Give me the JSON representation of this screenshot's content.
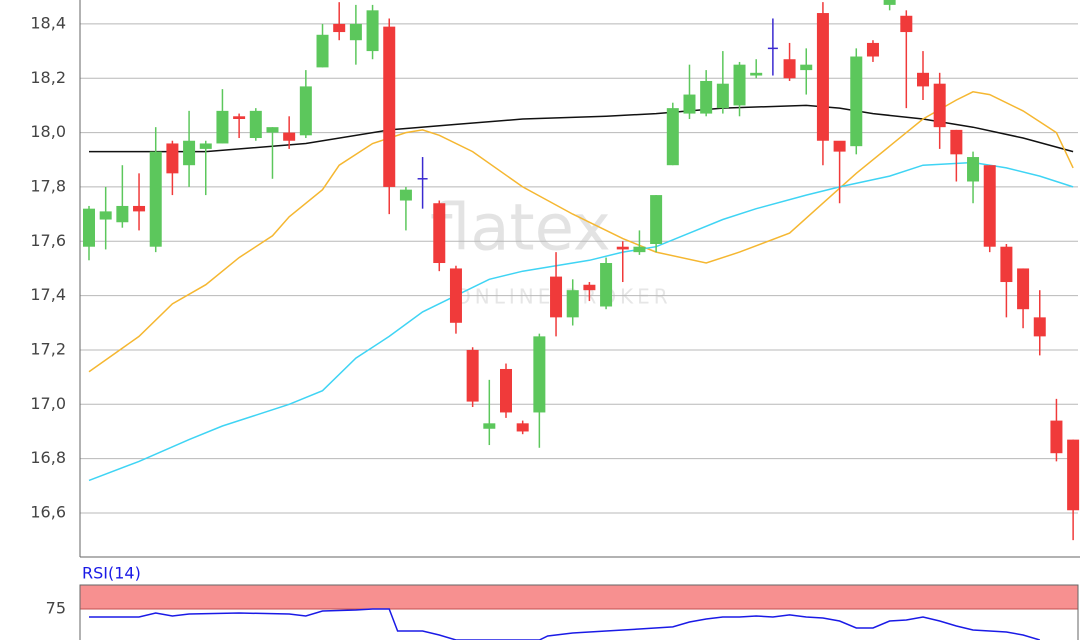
{
  "chart_data": [
    {
      "type": "candlestick",
      "watermark": "flatex",
      "watermark_sub": "ONLINE BROKER",
      "up_color": "#5cc75c",
      "down_color": "#f03a3a",
      "flat_color": "#3a2ad0",
      "open": [
        17.58,
        17.68,
        17.67,
        17.73,
        17.58,
        17.96,
        17.88,
        17.94,
        17.96,
        18.06,
        17.98,
        18.0,
        18.0,
        17.99,
        18.24,
        18.4,
        18.34,
        18.3,
        18.39,
        17.75,
        17.83,
        17.74,
        17.5,
        17.2,
        16.91,
        17.13,
        16.93,
        16.97,
        17.47,
        17.32,
        17.44,
        17.36,
        17.58,
        17.56,
        17.59,
        17.88,
        18.07,
        18.07,
        18.09,
        18.1,
        18.21,
        18.31,
        18.27,
        18.23,
        18.44,
        17.97,
        17.95,
        18.33,
        18.47,
        18.43,
        18.22,
        18.18,
        18.01,
        17.82,
        17.88,
        17.58,
        17.5,
        17.32,
        16.94,
        16.87
      ],
      "high": [
        17.73,
        17.8,
        17.88,
        17.85,
        18.02,
        17.97,
        18.08,
        17.97,
        18.16,
        18.07,
        18.09,
        18.02,
        18.06,
        18.23,
        18.4,
        18.48,
        18.47,
        18.47,
        18.42,
        17.8,
        17.91,
        17.75,
        17.51,
        17.21,
        17.09,
        17.15,
        16.94,
        17.26,
        17.56,
        17.46,
        17.45,
        17.54,
        17.6,
        17.64,
        17.77,
        18.11,
        18.25,
        18.23,
        18.3,
        18.26,
        18.27,
        18.42,
        18.33,
        18.31,
        18.48,
        17.96,
        18.31,
        18.34,
        18.49,
        18.45,
        18.3,
        18.22,
        18.01,
        17.93,
        17.88,
        17.59,
        17.5,
        17.42,
        17.02,
        16.87
      ],
      "low": [
        17.53,
        17.57,
        17.65,
        17.64,
        17.56,
        17.77,
        17.8,
        17.77,
        17.96,
        17.98,
        17.97,
        17.83,
        17.94,
        17.98,
        18.24,
        18.34,
        18.25,
        18.27,
        17.7,
        17.64,
        17.72,
        17.49,
        17.26,
        16.99,
        16.85,
        16.95,
        16.89,
        16.84,
        17.25,
        17.29,
        17.38,
        17.35,
        17.45,
        17.55,
        17.56,
        17.88,
        18.05,
        18.06,
        18.07,
        18.06,
        18.2,
        18.21,
        18.19,
        18.14,
        17.88,
        17.74,
        17.92,
        18.26,
        18.45,
        18.09,
        18.12,
        17.94,
        17.82,
        17.74,
        17.56,
        17.32,
        17.28,
        17.18,
        16.79,
        16.5
      ],
      "close": [
        17.72,
        17.71,
        17.73,
        17.71,
        17.93,
        17.85,
        17.97,
        17.96,
        18.08,
        18.05,
        18.08,
        18.02,
        17.97,
        18.17,
        18.36,
        18.37,
        18.4,
        18.45,
        17.8,
        17.79,
        17.83,
        17.52,
        17.3,
        17.01,
        16.93,
        16.97,
        16.9,
        17.25,
        17.32,
        17.42,
        17.42,
        17.52,
        17.57,
        17.58,
        17.77,
        18.09,
        18.14,
        18.19,
        18.18,
        18.25,
        18.22,
        18.31,
        18.2,
        18.25,
        17.97,
        17.93,
        18.28,
        18.28,
        18.49,
        18.37,
        18.17,
        18.02,
        17.92,
        17.91,
        17.58,
        17.45,
        17.35,
        17.25,
        16.82,
        16.61
      ],
      "overlays": [
        {
          "color": "#111111",
          "x": [
            0,
            7,
            13,
            18,
            22,
            26,
            31,
            34,
            38,
            43,
            45,
            47,
            50,
            53,
            56,
            59
          ],
          "values": [
            17.93,
            17.93,
            17.96,
            18.01,
            18.03,
            18.05,
            18.06,
            18.07,
            18.09,
            18.1,
            18.09,
            18.07,
            18.05,
            18.02,
            17.98,
            17.93
          ]
        },
        {
          "color": "#f5b731",
          "x": [
            0,
            3,
            5,
            7,
            9,
            11,
            12,
            14,
            15,
            17,
            19,
            20,
            21,
            23,
            26,
            29,
            32,
            34,
            37,
            39,
            42,
            44,
            46,
            48,
            50,
            52,
            53,
            54,
            56,
            58,
            59
          ],
          "values": [
            17.12,
            17.25,
            17.37,
            17.44,
            17.54,
            17.62,
            17.69,
            17.79,
            17.88,
            17.96,
            18.0,
            18.01,
            17.99,
            17.93,
            17.8,
            17.7,
            17.61,
            17.56,
            17.52,
            17.56,
            17.63,
            17.74,
            17.85,
            17.95,
            18.05,
            18.12,
            18.15,
            18.14,
            18.08,
            18.0,
            17.87
          ]
        },
        {
          "color": "#3fd4f4",
          "x": [
            0,
            3,
            6,
            8,
            10,
            12,
            14,
            16,
            18,
            20,
            22,
            24,
            26,
            28,
            30,
            32,
            34,
            36,
            38,
            40,
            43,
            45,
            48,
            50,
            53,
            55,
            57,
            59
          ],
          "values": [
            16.72,
            16.79,
            16.87,
            16.92,
            16.96,
            17.0,
            17.05,
            17.17,
            17.25,
            17.34,
            17.4,
            17.46,
            17.49,
            17.51,
            17.53,
            17.56,
            17.58,
            17.63,
            17.68,
            17.72,
            17.77,
            17.8,
            17.84,
            17.88,
            17.89,
            17.87,
            17.84,
            17.8
          ]
        }
      ],
      "ylim": [
        16.438,
        18.488
      ],
      "yticks": [
        {
          "value": 16.6,
          "label": "16,6"
        },
        {
          "value": 16.8,
          "label": "16,8"
        },
        {
          "value": 17.0,
          "label": "17,0"
        },
        {
          "value": 17.2,
          "label": "17,2"
        },
        {
          "value": 17.4,
          "label": "17,4"
        },
        {
          "value": 17.6,
          "label": "17,6"
        },
        {
          "value": 17.8,
          "label": "17,8"
        },
        {
          "value": 18.0,
          "label": "18,0"
        },
        {
          "value": 18.2,
          "label": "18,2"
        },
        {
          "value": 18.4,
          "label": "18,4"
        }
      ],
      "grid": true
    },
    {
      "type": "line",
      "title": "RSI(14)",
      "band": [
        75,
        100
      ],
      "band_color": "#f79090",
      "series": [
        {
          "color": "#1a1ae6",
          "x": [
            0,
            3,
            4,
            5,
            6,
            9,
            12,
            13,
            14,
            16,
            17,
            18,
            18.5,
            20,
            21,
            22,
            27,
            27.5,
            29,
            31,
            33,
            35,
            36,
            37,
            38,
            39,
            40,
            41,
            42,
            43,
            44,
            45,
            46,
            47,
            48,
            49,
            50,
            51,
            52,
            53,
            55,
            56,
            57
          ],
          "values": [
            66.7,
            66.7,
            70.8,
            67.7,
            69.8,
            70.8,
            69.8,
            67.7,
            72.9,
            74,
            75,
            75,
            52.1,
            52.1,
            47.9,
            42.7,
            42.7,
            46.9,
            50,
            52.1,
            54.2,
            56.3,
            61.5,
            64.6,
            66.7,
            66.7,
            67.7,
            66.7,
            68.8,
            66.7,
            65.6,
            62.5,
            55.2,
            55.2,
            62.5,
            63.5,
            66.7,
            62.5,
            57.3,
            53.1,
            51,
            47.9,
            42.7
          ]
        }
      ],
      "ylim": [
        42.7,
        100
      ],
      "yticks": [
        75
      ]
    }
  ]
}
